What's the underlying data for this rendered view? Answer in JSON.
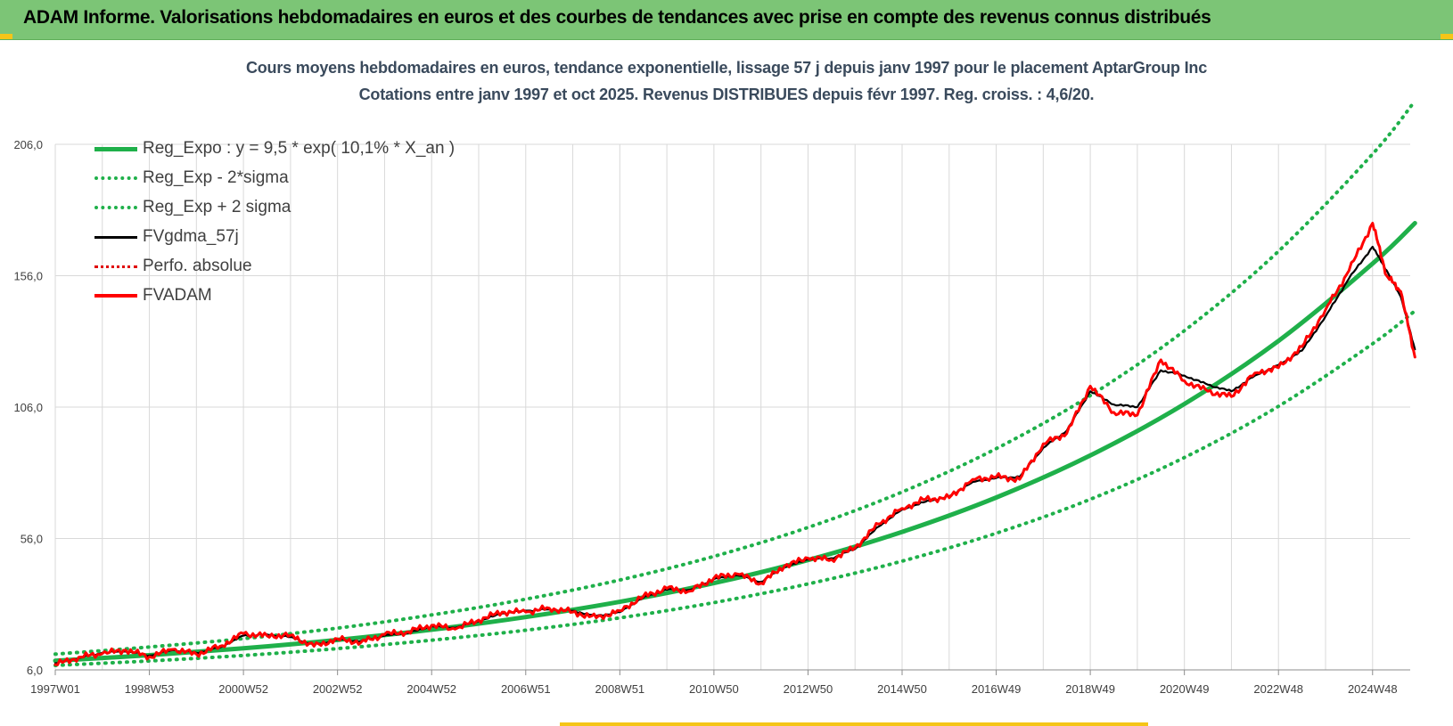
{
  "header": {
    "title": "ADAM Informe. Valorisations hebdomadaires en euros et des courbes de tendances avec prise en compte des revenus connus distribués"
  },
  "chart_data": {
    "type": "line",
    "title": "Cours moyens hebdomadaires en euros, tendance exponentielle, lissage 57 j depuis janv 1997 pour le placement AptarGroup Inc",
    "subtitle": "Cotations entre janv 1997 et oct 2025. Revenus DISTRIBUES depuis févr 1997. Reg. croiss. : 4,6/20.",
    "xlabel": "",
    "ylabel": "",
    "ylim": [
      6,
      206
    ],
    "xlim": [
      1997.0,
      2025.8
    ],
    "grid": true,
    "legend_position": "top-left",
    "y_ticks": [
      "6,0",
      "56,0",
      "106,0",
      "156,0",
      "206,0"
    ],
    "y_tick_values": [
      6,
      56,
      106,
      156,
      206
    ],
    "x_ticks": [
      "1997W01",
      "1998W53",
      "2000W52",
      "2002W52",
      "2004W52",
      "2006W51",
      "2008W51",
      "2010W50",
      "2012W50",
      "2014W50",
      "2016W49",
      "2018W49",
      "2020W49",
      "2022W48",
      "2024W48"
    ],
    "x_tick_values": [
      1997.0,
      1999.0,
      2001.0,
      2003.0,
      2005.0,
      2007.0,
      2009.0,
      2011.0,
      2013.0,
      2015.0,
      2017.0,
      2019.0,
      2021.0,
      2023.0,
      2025.0
    ],
    "series": [
      {
        "name": "Reg_Expo : y = 9,5 * exp( 10,1% *  X_an )",
        "color": "#1fb04a",
        "style": "solid",
        "x": [
          1997.0,
          1999.0,
          2001.0,
          2003.0,
          2005.0,
          2007.0,
          2009.0,
          2011.0,
          2013.0,
          2015.0,
          2017.0,
          2019.0,
          2021.0,
          2023.0,
          2025.0,
          2025.9
        ],
        "y": [
          9.5,
          11.6,
          14.2,
          17.4,
          21.3,
          26.1,
          31.9,
          39.0,
          47.8,
          58.5,
          71.6,
          87.6,
          107.2,
          131.2,
          160.6,
          176.0
        ]
      },
      {
        "name": "Reg_Exp - 2*sigma",
        "color": "#1fb04a",
        "style": "dotted",
        "x": [
          1997.0,
          1999.0,
          2001.0,
          2003.0,
          2005.0,
          2007.0,
          2009.0,
          2011.0,
          2013.0,
          2015.0,
          2017.0,
          2019.0,
          2021.0,
          2023.0,
          2025.0,
          2025.9
        ],
        "y": [
          7.7,
          9.4,
          11.5,
          14.1,
          17.3,
          21.1,
          25.8,
          31.6,
          38.7,
          47.4,
          58.0,
          70.9,
          86.8,
          106.3,
          130.1,
          142.6
        ]
      },
      {
        "name": "Reg_Exp + 2 sigma",
        "color": "#1fb04a",
        "style": "dotted",
        "x": [
          1997.0,
          1999.0,
          2001.0,
          2003.0,
          2005.0,
          2007.0,
          2009.0,
          2011.0,
          2013.0,
          2015.0,
          2017.0,
          2019.0,
          2021.0,
          2023.0,
          2025.0,
          2025.9
        ],
        "y": [
          12.0,
          14.7,
          17.9,
          21.9,
          26.9,
          32.9,
          40.2,
          49.2,
          60.2,
          73.7,
          90.2,
          110.4,
          135.1,
          165.3,
          202.3,
          222.5
        ]
      },
      {
        "name": "FVgdma_57j",
        "color": "#000000",
        "style": "solid",
        "x": [
          1997.0,
          1997.5,
          1998.0,
          1998.5,
          1999.0,
          1999.5,
          2000.0,
          2000.5,
          2001.0,
          2001.5,
          2002.0,
          2002.5,
          2003.0,
          2003.5,
          2004.0,
          2004.5,
          2005.0,
          2005.5,
          2006.0,
          2006.5,
          2007.0,
          2007.5,
          2008.0,
          2008.5,
          2009.0,
          2009.5,
          2010.0,
          2010.5,
          2011.0,
          2011.5,
          2012.0,
          2012.5,
          2013.0,
          2013.5,
          2014.0,
          2014.5,
          2015.0,
          2015.5,
          2016.0,
          2016.5,
          2017.0,
          2017.5,
          2018.0,
          2018.5,
          2019.0,
          2019.5,
          2020.0,
          2020.5,
          2021.0,
          2021.5,
          2022.0,
          2022.5,
          2023.0,
          2023.5,
          2024.0,
          2024.5,
          2025.0,
          2025.3,
          2025.6,
          2025.9
        ],
        "y": [
          8.5,
          10.5,
          12.5,
          13.0,
          11.5,
          13.5,
          12.5,
          14.5,
          19.0,
          19.5,
          18.5,
          15.5,
          17.5,
          17.0,
          19.0,
          20.0,
          22.5,
          22.0,
          24.5,
          27.5,
          28.5,
          29.0,
          28.5,
          26.5,
          28.0,
          33.5,
          36.5,
          36.5,
          40.5,
          42.0,
          39.5,
          45.0,
          48.0,
          48.5,
          52.0,
          60.5,
          67.0,
          70.0,
          72.0,
          77.5,
          79.0,
          79.5,
          90.5,
          97.0,
          112.0,
          107.0,
          106.0,
          120.0,
          118.0,
          114.5,
          112.0,
          118.0,
          122.0,
          127.5,
          140.5,
          155.0,
          167.0,
          158.0,
          148.0,
          128.0
        ]
      },
      {
        "name": "Perfo. absolue",
        "color": "#e00000",
        "style": "dotted",
        "x": [
          1997.0,
          1997.5,
          1998.0,
          1998.5,
          1999.0,
          1999.5,
          2000.0,
          2000.5,
          2001.0,
          2001.5,
          2002.0,
          2002.5,
          2003.0,
          2003.5,
          2004.0,
          2004.5,
          2005.0,
          2005.5,
          2006.0,
          2006.5,
          2007.0,
          2007.5,
          2008.0,
          2008.5,
          2009.0,
          2009.5,
          2010.0,
          2010.5,
          2011.0,
          2011.5,
          2012.0,
          2012.5,
          2013.0,
          2013.5,
          2014.0,
          2014.5,
          2015.0,
          2015.5,
          2016.0,
          2016.5,
          2017.0,
          2017.5,
          2018.0,
          2018.5,
          2019.0,
          2019.5,
          2020.0,
          2020.5,
          2021.0,
          2021.5,
          2022.0,
          2022.5,
          2023.0,
          2023.5,
          2024.0,
          2024.5,
          2025.0,
          2025.3,
          2025.6,
          2025.9
        ],
        "y": [
          8.0,
          10.8,
          12.2,
          13.5,
          11.0,
          13.8,
          12.0,
          15.0,
          19.8,
          19.0,
          19.2,
          15.0,
          17.8,
          16.5,
          19.5,
          20.5,
          23.0,
          21.5,
          25.0,
          28.0,
          28.0,
          29.5,
          28.0,
          25.8,
          28.5,
          34.0,
          37.0,
          36.0,
          41.0,
          42.5,
          39.0,
          45.5,
          48.5,
          48.0,
          52.5,
          61.5,
          67.5,
          71.0,
          71.5,
          78.5,
          79.5,
          78.5,
          92.0,
          96.0,
          114.0,
          104.0,
          103.0,
          124.0,
          116.0,
          112.0,
          110.0,
          119.0,
          121.0,
          129.0,
          143.0,
          158.0,
          176.0,
          156.0,
          150.0,
          125.0
        ]
      },
      {
        "name": "FVADAM",
        "color": "#ff0000",
        "style": "solid",
        "x": [
          1997.0,
          1997.5,
          1998.0,
          1998.5,
          1999.0,
          1999.5,
          2000.0,
          2000.5,
          2001.0,
          2001.5,
          2002.0,
          2002.5,
          2003.0,
          2003.5,
          2004.0,
          2004.5,
          2005.0,
          2005.5,
          2006.0,
          2006.5,
          2007.0,
          2007.5,
          2008.0,
          2008.5,
          2009.0,
          2009.5,
          2010.0,
          2010.5,
          2011.0,
          2011.5,
          2012.0,
          2012.5,
          2013.0,
          2013.5,
          2014.0,
          2014.5,
          2015.0,
          2015.5,
          2016.0,
          2016.5,
          2017.0,
          2017.5,
          2018.0,
          2018.5,
          2019.0,
          2019.5,
          2020.0,
          2020.5,
          2021.0,
          2021.5,
          2022.0,
          2022.5,
          2023.0,
          2023.5,
          2024.0,
          2024.5,
          2025.0,
          2025.3,
          2025.6,
          2025.9
        ],
        "y": [
          8.0,
          10.8,
          12.2,
          13.5,
          11.0,
          13.8,
          12.0,
          15.0,
          19.8,
          19.0,
          19.2,
          15.0,
          17.8,
          16.5,
          19.5,
          20.5,
          23.0,
          21.5,
          25.0,
          28.0,
          28.0,
          29.5,
          28.0,
          25.8,
          28.5,
          34.0,
          37.0,
          36.0,
          41.0,
          42.5,
          39.0,
          45.5,
          48.5,
          48.0,
          52.5,
          61.5,
          67.5,
          71.0,
          71.5,
          78.5,
          79.5,
          78.5,
          92.0,
          96.0,
          114.0,
          104.0,
          103.0,
          124.0,
          116.0,
          112.0,
          110.0,
          119.0,
          121.0,
          129.0,
          143.0,
          158.0,
          176.0,
          156.0,
          150.0,
          125.0
        ]
      }
    ]
  }
}
